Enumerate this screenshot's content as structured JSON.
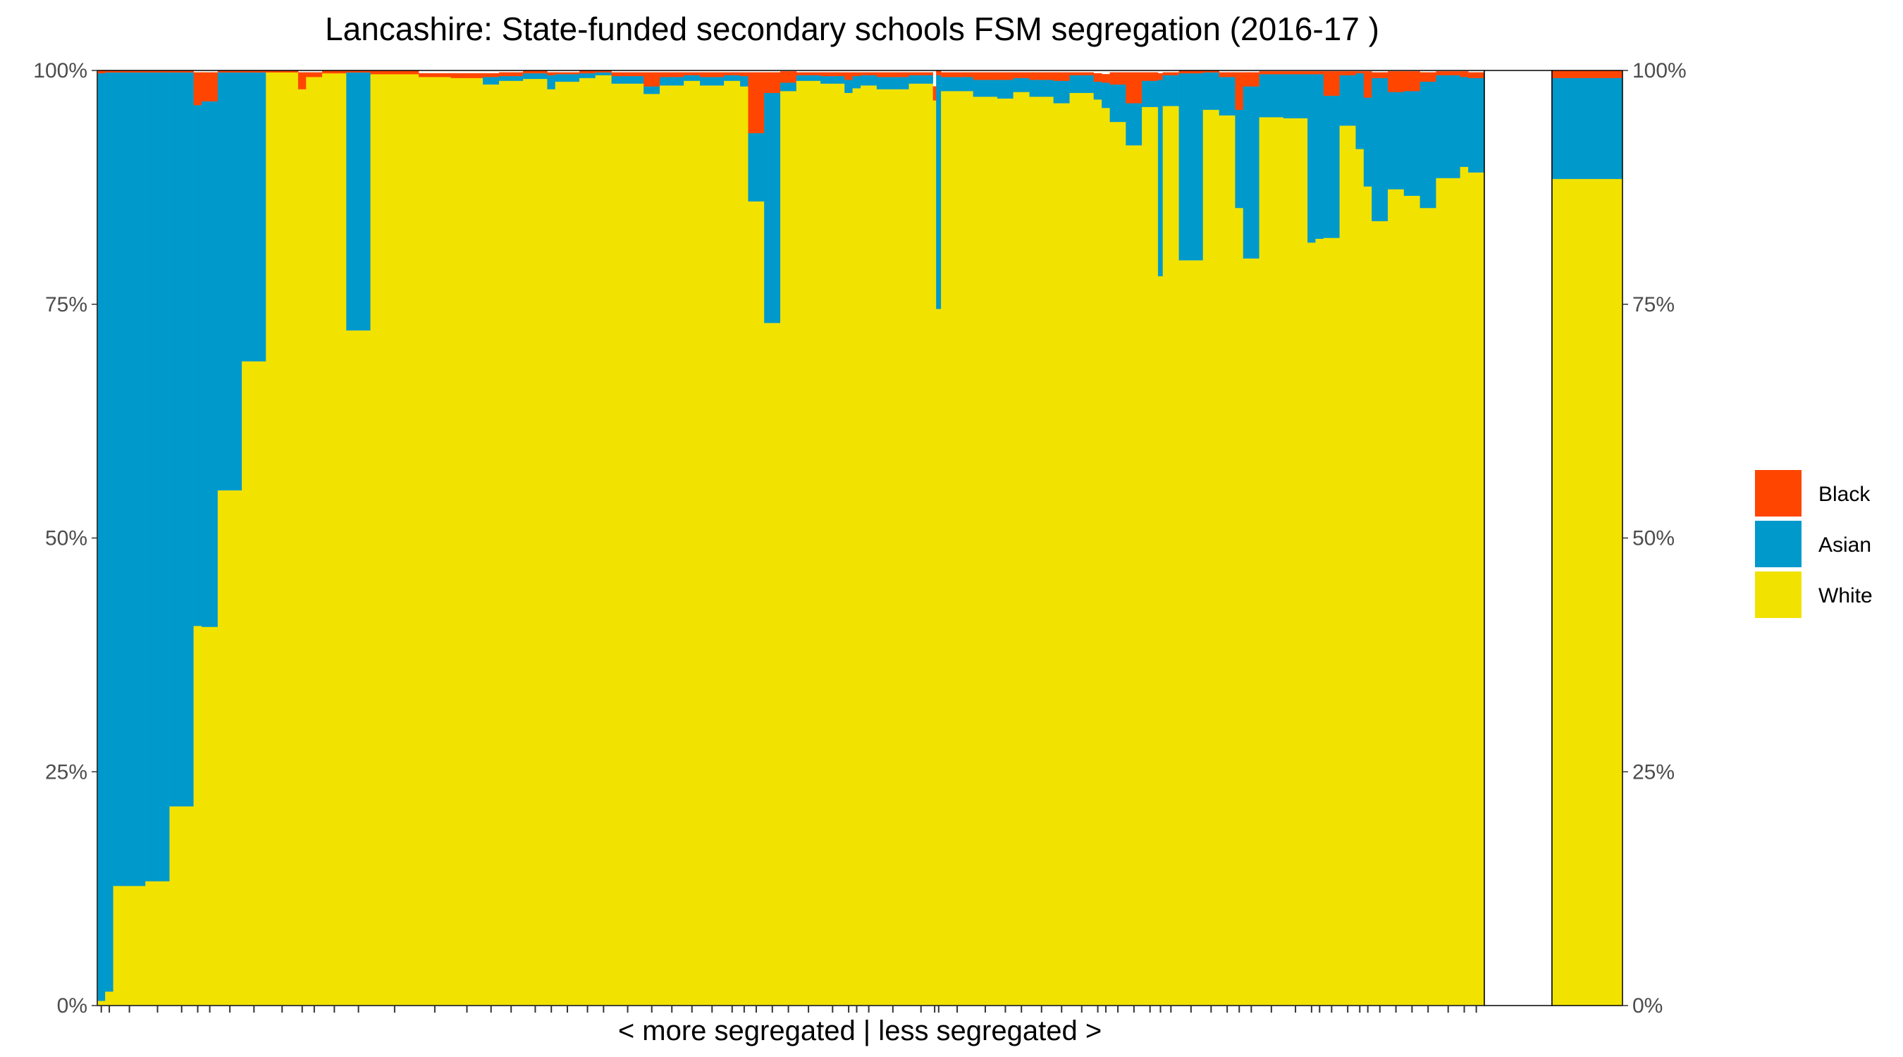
{
  "chart_data": {
    "type": "bar",
    "title": "Lancashire: State-funded secondary schools FSM segregation (2016-17 )",
    "xlabel": "< more segregated | less segregated >",
    "ylabel": "",
    "ylim": [
      0,
      100
    ],
    "y_ticks": [
      "0%",
      "25%",
      "50%",
      "75%",
      "100%"
    ],
    "stacked": true,
    "grid": false,
    "legend_position": "right",
    "legend": [
      {
        "name": "Black",
        "color": "#FF4500"
      },
      {
        "name": "Asian",
        "color": "#0099CC"
      },
      {
        "name": "White",
        "color": "#F2E200"
      }
    ],
    "series_names": [
      "White",
      "Asian",
      "Black"
    ],
    "colors": {
      "White": "#F2E200",
      "Asian": "#0099CC",
      "Black": "#FF4500"
    },
    "schools": [
      {
        "w": 0.5,
        "white": 0.5,
        "asian": 99.2
      },
      {
        "w": 0.5,
        "white": 1.5,
        "asian": 98.3
      },
      {
        "w": 2,
        "white": 12.8,
        "asian": 87.0
      },
      {
        "w": 1.5,
        "white": 13.3,
        "asian": 86.5
      },
      {
        "w": 1.5,
        "white": 21.3,
        "asian": 78.5
      },
      {
        "w": 0.5,
        "white": 40.6,
        "asian": 55.7,
        "black": 3.5
      },
      {
        "w": 1,
        "white": 40.5,
        "asian": 56.2,
        "black": 3.1
      },
      {
        "w": 1.5,
        "white": 55.1,
        "asian": 44.7
      },
      {
        "w": 1.5,
        "white": 68.9,
        "asian": 30.9
      },
      {
        "w": 2,
        "white": 99.8
      },
      {
        "w": 0.5,
        "white": 98.0,
        "black": 1.8
      },
      {
        "w": 1,
        "white": 99.3,
        "black": 0.5
      },
      {
        "w": 1.5,
        "white": 99.7
      },
      {
        "w": 1.5,
        "white": 72.2,
        "asian": 27.6
      },
      {
        "w": 3,
        "white": 99.6
      },
      {
        "w": 2,
        "white": 99.3,
        "black": 0.4
      },
      {
        "w": 2,
        "white": 99.2,
        "black": 0.5
      },
      {
        "w": 1,
        "white": 98.5,
        "asian": 0.8,
        "black": 0.4
      },
      {
        "w": 1.5,
        "white": 98.9,
        "asian": 0.5,
        "black": 0.4
      },
      {
        "w": 1.5,
        "white": 99.1,
        "asian": 0.6
      },
      {
        "w": 0.5,
        "white": 98.0,
        "asian": 1.5,
        "black": 0.3
      },
      {
        "w": 1.5,
        "white": 98.8,
        "asian": 0.8,
        "black": 0.2
      },
      {
        "w": 1,
        "white": 99.2,
        "asian": 0.5
      },
      {
        "w": 1,
        "white": 99.5,
        "asian": 0.3
      },
      {
        "w": 2,
        "white": 98.6,
        "asian": 0.8,
        "black": 0.4
      },
      {
        "w": 1,
        "white": 97.5,
        "asian": 0.8,
        "black": 1.5
      },
      {
        "w": 1.5,
        "white": 98.4,
        "asian": 0.9,
        "black": 0.5
      },
      {
        "w": 1,
        "white": 98.9,
        "asian": 0.6,
        "black": 0.3
      },
      {
        "w": 1.5,
        "white": 98.4,
        "asian": 0.9,
        "black": 0.5
      },
      {
        "w": 1,
        "white": 98.9,
        "asian": 0.6,
        "black": 0.3
      },
      {
        "w": 0.5,
        "white": 98.3,
        "asian": 1.1,
        "black": 0.4
      },
      {
        "w": 1,
        "white": 86.0,
        "asian": 7.3,
        "black": 6.5
      },
      {
        "w": 1,
        "white": 73.0,
        "asian": 24.6,
        "black": 2.2
      },
      {
        "w": 1,
        "white": 97.8,
        "asian": 0.9,
        "black": 1.2
      },
      {
        "w": 1.5,
        "white": 98.9,
        "asian": 0.6,
        "black": 0.3
      },
      {
        "w": 1.5,
        "white": 98.6,
        "asian": 0.8,
        "black": 0.4
      },
      {
        "w": 0.5,
        "white": 97.6,
        "asian": 1.4,
        "black": 0.8
      },
      {
        "w": 0.5,
        "white": 98.1,
        "asian": 1.3,
        "black": 0.4
      },
      {
        "w": 1,
        "white": 98.4,
        "asian": 1.1,
        "black": 0.3
      },
      {
        "w": 2,
        "white": 98.0,
        "asian": 1.3,
        "black": 0.5
      },
      {
        "w": 1.5,
        "white": 98.6,
        "asian": 0.9,
        "black": 0.3
      },
      {
        "w": 0.2,
        "white": 96.8,
        "black": 1.5
      },
      {
        "w": 0.3,
        "white": 74.5,
        "asian": 25.0
      },
      {
        "w": 2,
        "white": 97.8,
        "asian": 1.5,
        "black": 0.5
      },
      {
        "w": 1.5,
        "white": 97.2,
        "asian": 1.8,
        "black": 0.8
      },
      {
        "w": 1,
        "white": 97.0,
        "asian": 2.0,
        "black": 0.8
      },
      {
        "w": 1,
        "white": 97.7,
        "asian": 1.5,
        "black": 0.6
      },
      {
        "w": 1.5,
        "white": 97.2,
        "asian": 1.8,
        "black": 0.8
      },
      {
        "w": 1,
        "white": 96.5,
        "asian": 2.4,
        "black": 0.9
      },
      {
        "w": 1.5,
        "white": 97.6,
        "asian": 1.9,
        "black": 0.3
      },
      {
        "w": 0.5,
        "white": 96.9,
        "asian": 1.9,
        "black": 0.9
      },
      {
        "w": 0.5,
        "white": 96.0,
        "asian": 2.7,
        "black": 0.9
      },
      {
        "w": 1,
        "white": 94.5,
        "asian": 4.0,
        "black": 1.3
      },
      {
        "w": 1,
        "white": 92.0,
        "asian": 4.5,
        "black": 3.3
      },
      {
        "w": 1,
        "white": 96.1,
        "asian": 2.8,
        "black": 0.9
      },
      {
        "w": 0.3,
        "white": 78.0,
        "asian": 21.0,
        "black": 0.7
      },
      {
        "w": 1,
        "white": 96.2,
        "asian": 3.3,
        "black": 0.3
      },
      {
        "w": 1.5,
        "white": 79.7,
        "asian": 20.0
      },
      {
        "w": 1,
        "white": 95.8,
        "asian": 4.0
      },
      {
        "w": 1,
        "white": 95.2,
        "asian": 4.1,
        "black": 0.5
      },
      {
        "w": 0.5,
        "white": 85.3,
        "asian": 10.5,
        "black": 4.0
      },
      {
        "w": 1,
        "white": 79.9,
        "asian": 18.4,
        "black": 1.5
      },
      {
        "w": 1.5,
        "white": 95.0,
        "asian": 4.6,
        "black": 0.3
      },
      {
        "w": 1.5,
        "white": 94.9,
        "asian": 4.7,
        "black": 0.3
      },
      {
        "w": 0.5,
        "white": 81.6,
        "asian": 18.0,
        "black": 0.3
      },
      {
        "w": 0.5,
        "white": 82.0,
        "asian": 17.6,
        "black": 0.3
      },
      {
        "w": 1,
        "white": 82.1,
        "asian": 15.2,
        "black": 2.6
      },
      {
        "w": 1,
        "white": 94.1,
        "asian": 5.4,
        "black": 0.4
      },
      {
        "w": 0.5,
        "white": 91.6,
        "asian": 8.1,
        "black": 0.2
      },
      {
        "w": 0.5,
        "white": 87.6,
        "asian": 9.5,
        "black": 2.8
      },
      {
        "w": 1,
        "white": 83.9,
        "asian": 15.3,
        "black": 0.6
      },
      {
        "w": 1,
        "white": 87.3,
        "asian": 10.4,
        "black": 2.2
      },
      {
        "w": 1,
        "white": 86.6,
        "asian": 11.2,
        "black": 2.1
      },
      {
        "w": 1,
        "white": 85.3,
        "asian": 13.5,
        "black": 1.0
      },
      {
        "w": 1.5,
        "white": 88.5,
        "asian": 11.0,
        "black": 0.4
      },
      {
        "w": 0.5,
        "white": 89.7,
        "asian": 9.6,
        "black": 0.6
      },
      {
        "w": 1,
        "white": 89.1,
        "asian": 10.1,
        "black": 0.6
      }
    ],
    "total": {
      "white": 88.4,
      "asian": 10.8,
      "black": 0.8
    }
  }
}
